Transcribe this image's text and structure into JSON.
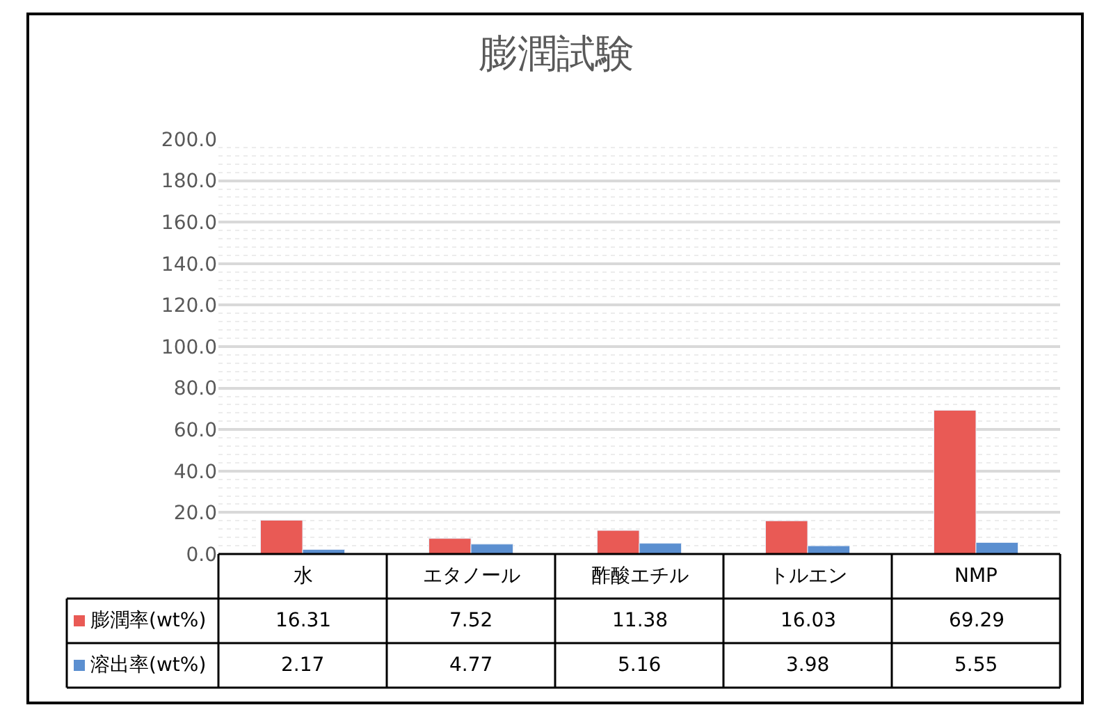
{
  "chart_data": {
    "type": "bar",
    "title": "膨潤試験",
    "categories": [
      "水",
      "エタノール",
      "酢酸エチル",
      "トルエン",
      "NMP"
    ],
    "series": [
      {
        "name": "膨潤率(wt%)",
        "color": "#e95a55",
        "values": [
          16.31,
          7.52,
          11.38,
          16.03,
          69.29
        ]
      },
      {
        "name": "溶出率(wt%)",
        "color": "#5b8fd0",
        "values": [
          2.17,
          4.77,
          5.16,
          3.98,
          5.55
        ]
      }
    ],
    "ylim": [
      0,
      200
    ],
    "yticks": [
      {
        "value": 0,
        "label": "0.0"
      },
      {
        "value": 20,
        "label": "20.0"
      },
      {
        "value": 40,
        "label": "40.0"
      },
      {
        "value": 60,
        "label": "60.0"
      },
      {
        "value": 80,
        "label": "80.0"
      },
      {
        "value": 100,
        "label": "100.0"
      },
      {
        "value": 120,
        "label": "120.0"
      },
      {
        "value": 140,
        "label": "140.0"
      },
      {
        "value": 160,
        "label": "160.0"
      },
      {
        "value": 180,
        "label": "180.0"
      },
      {
        "value": 200,
        "label": "200.0"
      }
    ],
    "grid": true,
    "legend": "bottom",
    "data_labels": true
  }
}
